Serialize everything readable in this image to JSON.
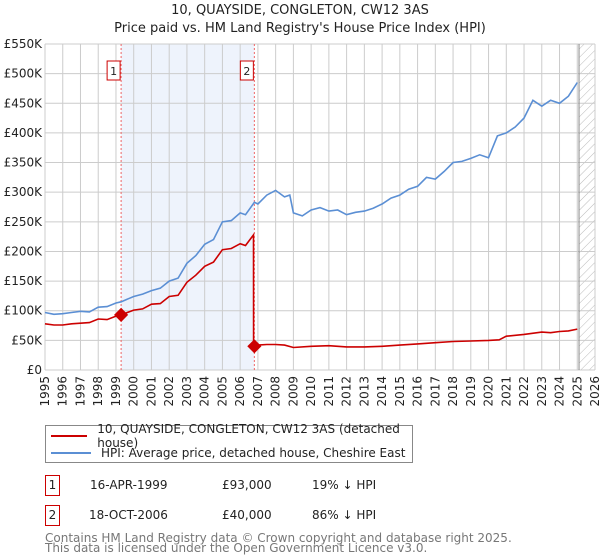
{
  "title_line1": "10, QUAYSIDE, CONGLETON, CW12 3AS",
  "title_line2": "Price paid vs. HM Land Registry's House Price Index (HPI)",
  "chart_data": {
    "type": "line",
    "title": "10, QUAYSIDE, CONGLETON, CW12 3AS — Price paid vs. HM Land Registry's House Price Index (HPI)",
    "xlim": [
      1995,
      2026
    ],
    "ylim": [
      0,
      550000
    ],
    "x_ticks": [
      "1995",
      "1996",
      "1997",
      "1998",
      "1999",
      "2000",
      "2001",
      "2002",
      "2003",
      "2004",
      "2005",
      "2006",
      "2007",
      "2008",
      "2009",
      "2010",
      "2011",
      "2012",
      "2013",
      "2014",
      "2015",
      "2016",
      "2017",
      "2018",
      "2019",
      "2020",
      "2021",
      "2022",
      "2023",
      "2024",
      "2025",
      "2026"
    ],
    "y_ticks": [
      {
        "v": 0,
        "label": "£0"
      },
      {
        "v": 50000,
        "label": "£50K"
      },
      {
        "v": 100000,
        "label": "£100K"
      },
      {
        "v": 150000,
        "label": "£150K"
      },
      {
        "v": 200000,
        "label": "£200K"
      },
      {
        "v": 250000,
        "label": "£250K"
      },
      {
        "v": 300000,
        "label": "£300K"
      },
      {
        "v": 350000,
        "label": "£350K"
      },
      {
        "v": 400000,
        "label": "£400K"
      },
      {
        "v": 450000,
        "label": "£450K"
      },
      {
        "v": 500000,
        "label": "£500K"
      },
      {
        "v": 550000,
        "label": "£550K"
      }
    ],
    "grid": true,
    "shaded_span": [
      1999.29,
      2006.8
    ],
    "hatched_from": 2025.1,
    "series": [
      {
        "name": "10, QUAYSIDE, CONGLETON, CW12 3AS (detached house)",
        "color": "#cc0000",
        "x": [
          1995,
          1995.5,
          1996,
          1996.5,
          1997,
          1997.5,
          1998,
          1998.5,
          1999,
          1999.29,
          2000,
          2000.5,
          2001,
          2001.5,
          2002,
          2002.5,
          2003,
          2003.5,
          2004,
          2004.5,
          2005,
          2005.5,
          2006,
          2006.3,
          2006.75,
          2006.76,
          2006.8,
          2007,
          2007.5,
          2008,
          2008.5,
          2009,
          2010,
          2011,
          2012,
          2013,
          2014,
          2015,
          2016,
          2017,
          2018,
          2019,
          2020,
          2020.6,
          2021,
          2022,
          2023,
          2023.5,
          2024,
          2024.5,
          2025
        ],
        "y": [
          78000,
          76000,
          76000,
          78000,
          79000,
          80000,
          86000,
          85000,
          91000,
          93000,
          101000,
          103000,
          111000,
          112000,
          124000,
          126000,
          148000,
          160000,
          175000,
          182000,
          203000,
          205000,
          213000,
          210000,
          228000,
          41000,
          40000,
          42000,
          43000,
          43000,
          42000,
          38000,
          40000,
          41000,
          39000,
          39000,
          40000,
          42000,
          44000,
          46000,
          48000,
          49000,
          50000,
          51000,
          57000,
          60000,
          64000,
          63000,
          65000,
          66000,
          69000
        ]
      },
      {
        "name": "HPI: Average price, detached house, Cheshire East",
        "color": "#5b8fd4",
        "x": [
          1995,
          1995.5,
          1996,
          1996.5,
          1997,
          1997.5,
          1998,
          1998.5,
          1999,
          1999.29,
          2000,
          2000.5,
          2001,
          2001.5,
          2002,
          2002.5,
          2003,
          2003.5,
          2004,
          2004.5,
          2005,
          2005.5,
          2006,
          2006.3,
          2006.8,
          2007,
          2007.5,
          2008,
          2008.5,
          2008.8,
          2009,
          2009.5,
          2010,
          2010.5,
          2011,
          2011.5,
          2012,
          2012.5,
          2013,
          2013.5,
          2014,
          2014.5,
          2015,
          2015.5,
          2016,
          2016.5,
          2017,
          2017.5,
          2018,
          2018.5,
          2019,
          2019.5,
          2020,
          2020.5,
          2021,
          2021.5,
          2022,
          2022.5,
          2023,
          2023.5,
          2024,
          2024.5,
          2025
        ],
        "y": [
          97000,
          94000,
          95000,
          97000,
          99000,
          98000,
          106000,
          107000,
          113000,
          115000,
          124000,
          128000,
          134000,
          138000,
          150000,
          155000,
          180000,
          193000,
          212000,
          220000,
          250000,
          252000,
          265000,
          262000,
          283000,
          280000,
          295000,
          303000,
          292000,
          295000,
          265000,
          260000,
          270000,
          274000,
          268000,
          270000,
          262000,
          266000,
          268000,
          273000,
          280000,
          290000,
          295000,
          305000,
          310000,
          325000,
          322000,
          335000,
          350000,
          352000,
          357000,
          363000,
          358000,
          395000,
          400000,
          410000,
          425000,
          455000,
          445000,
          455000,
          450000,
          462000,
          485000
        ]
      }
    ],
    "annotations": [
      {
        "label": "1",
        "x": 1999.29,
        "y": 93000
      },
      {
        "label": "2",
        "x": 2006.8,
        "y": 40000
      }
    ]
  },
  "legend": {
    "items": [
      {
        "label": "10, QUAYSIDE, CONGLETON, CW12 3AS (detached house)",
        "color": "#cc0000"
      },
      {
        "label": "HPI: Average price, detached house, Cheshire East",
        "color": "#5b8fd4"
      }
    ]
  },
  "transactions": [
    {
      "num": "1",
      "date": "16-APR-1999",
      "price": "£93,000",
      "hpi": "19% ↓ HPI"
    },
    {
      "num": "2",
      "date": "18-OCT-2006",
      "price": "£40,000",
      "hpi": "86% ↓ HPI"
    }
  ],
  "footer": {
    "line1": "Contains HM Land Registry data © Crown copyright and database right 2025.",
    "line2": "This data is licensed under the Open Government Licence v3.0."
  }
}
